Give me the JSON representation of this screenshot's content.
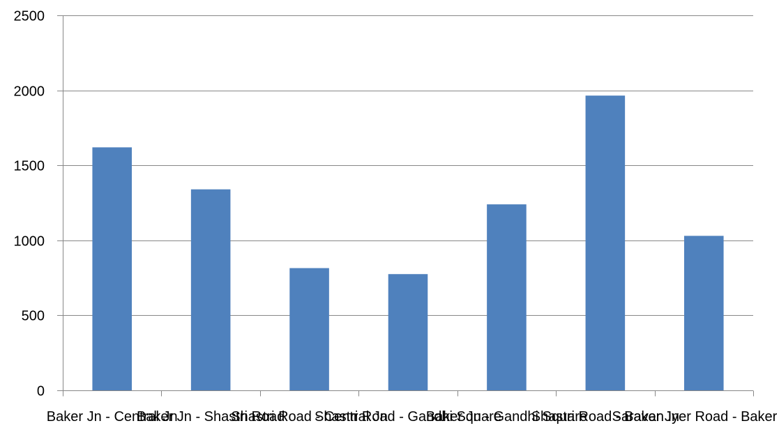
{
  "chart_data": {
    "type": "bar",
    "title": "",
    "xlabel": "",
    "ylabel": "",
    "ylim": [
      0,
      2500
    ],
    "yticks": [
      0,
      500,
      1000,
      1500,
      2000,
      2500
    ],
    "grid": true,
    "legend": "none",
    "categories": [
      "Baker Jn - Central Jn",
      "Baker Jn - Shastri Road",
      "Shastri Road - Central Jn",
      "Shastri Road - Gandhi Square",
      "Baker Jn - Gandhi Square",
      "Shastri Road - Baker Jn",
      "Saravan Iyer Road - Baker Jn"
    ],
    "values": [
      1620,
      1340,
      815,
      775,
      1240,
      1965,
      1030
    ],
    "colors": {
      "bar": "#4f81bd",
      "grid": "#878787",
      "axis": "#878787"
    }
  }
}
